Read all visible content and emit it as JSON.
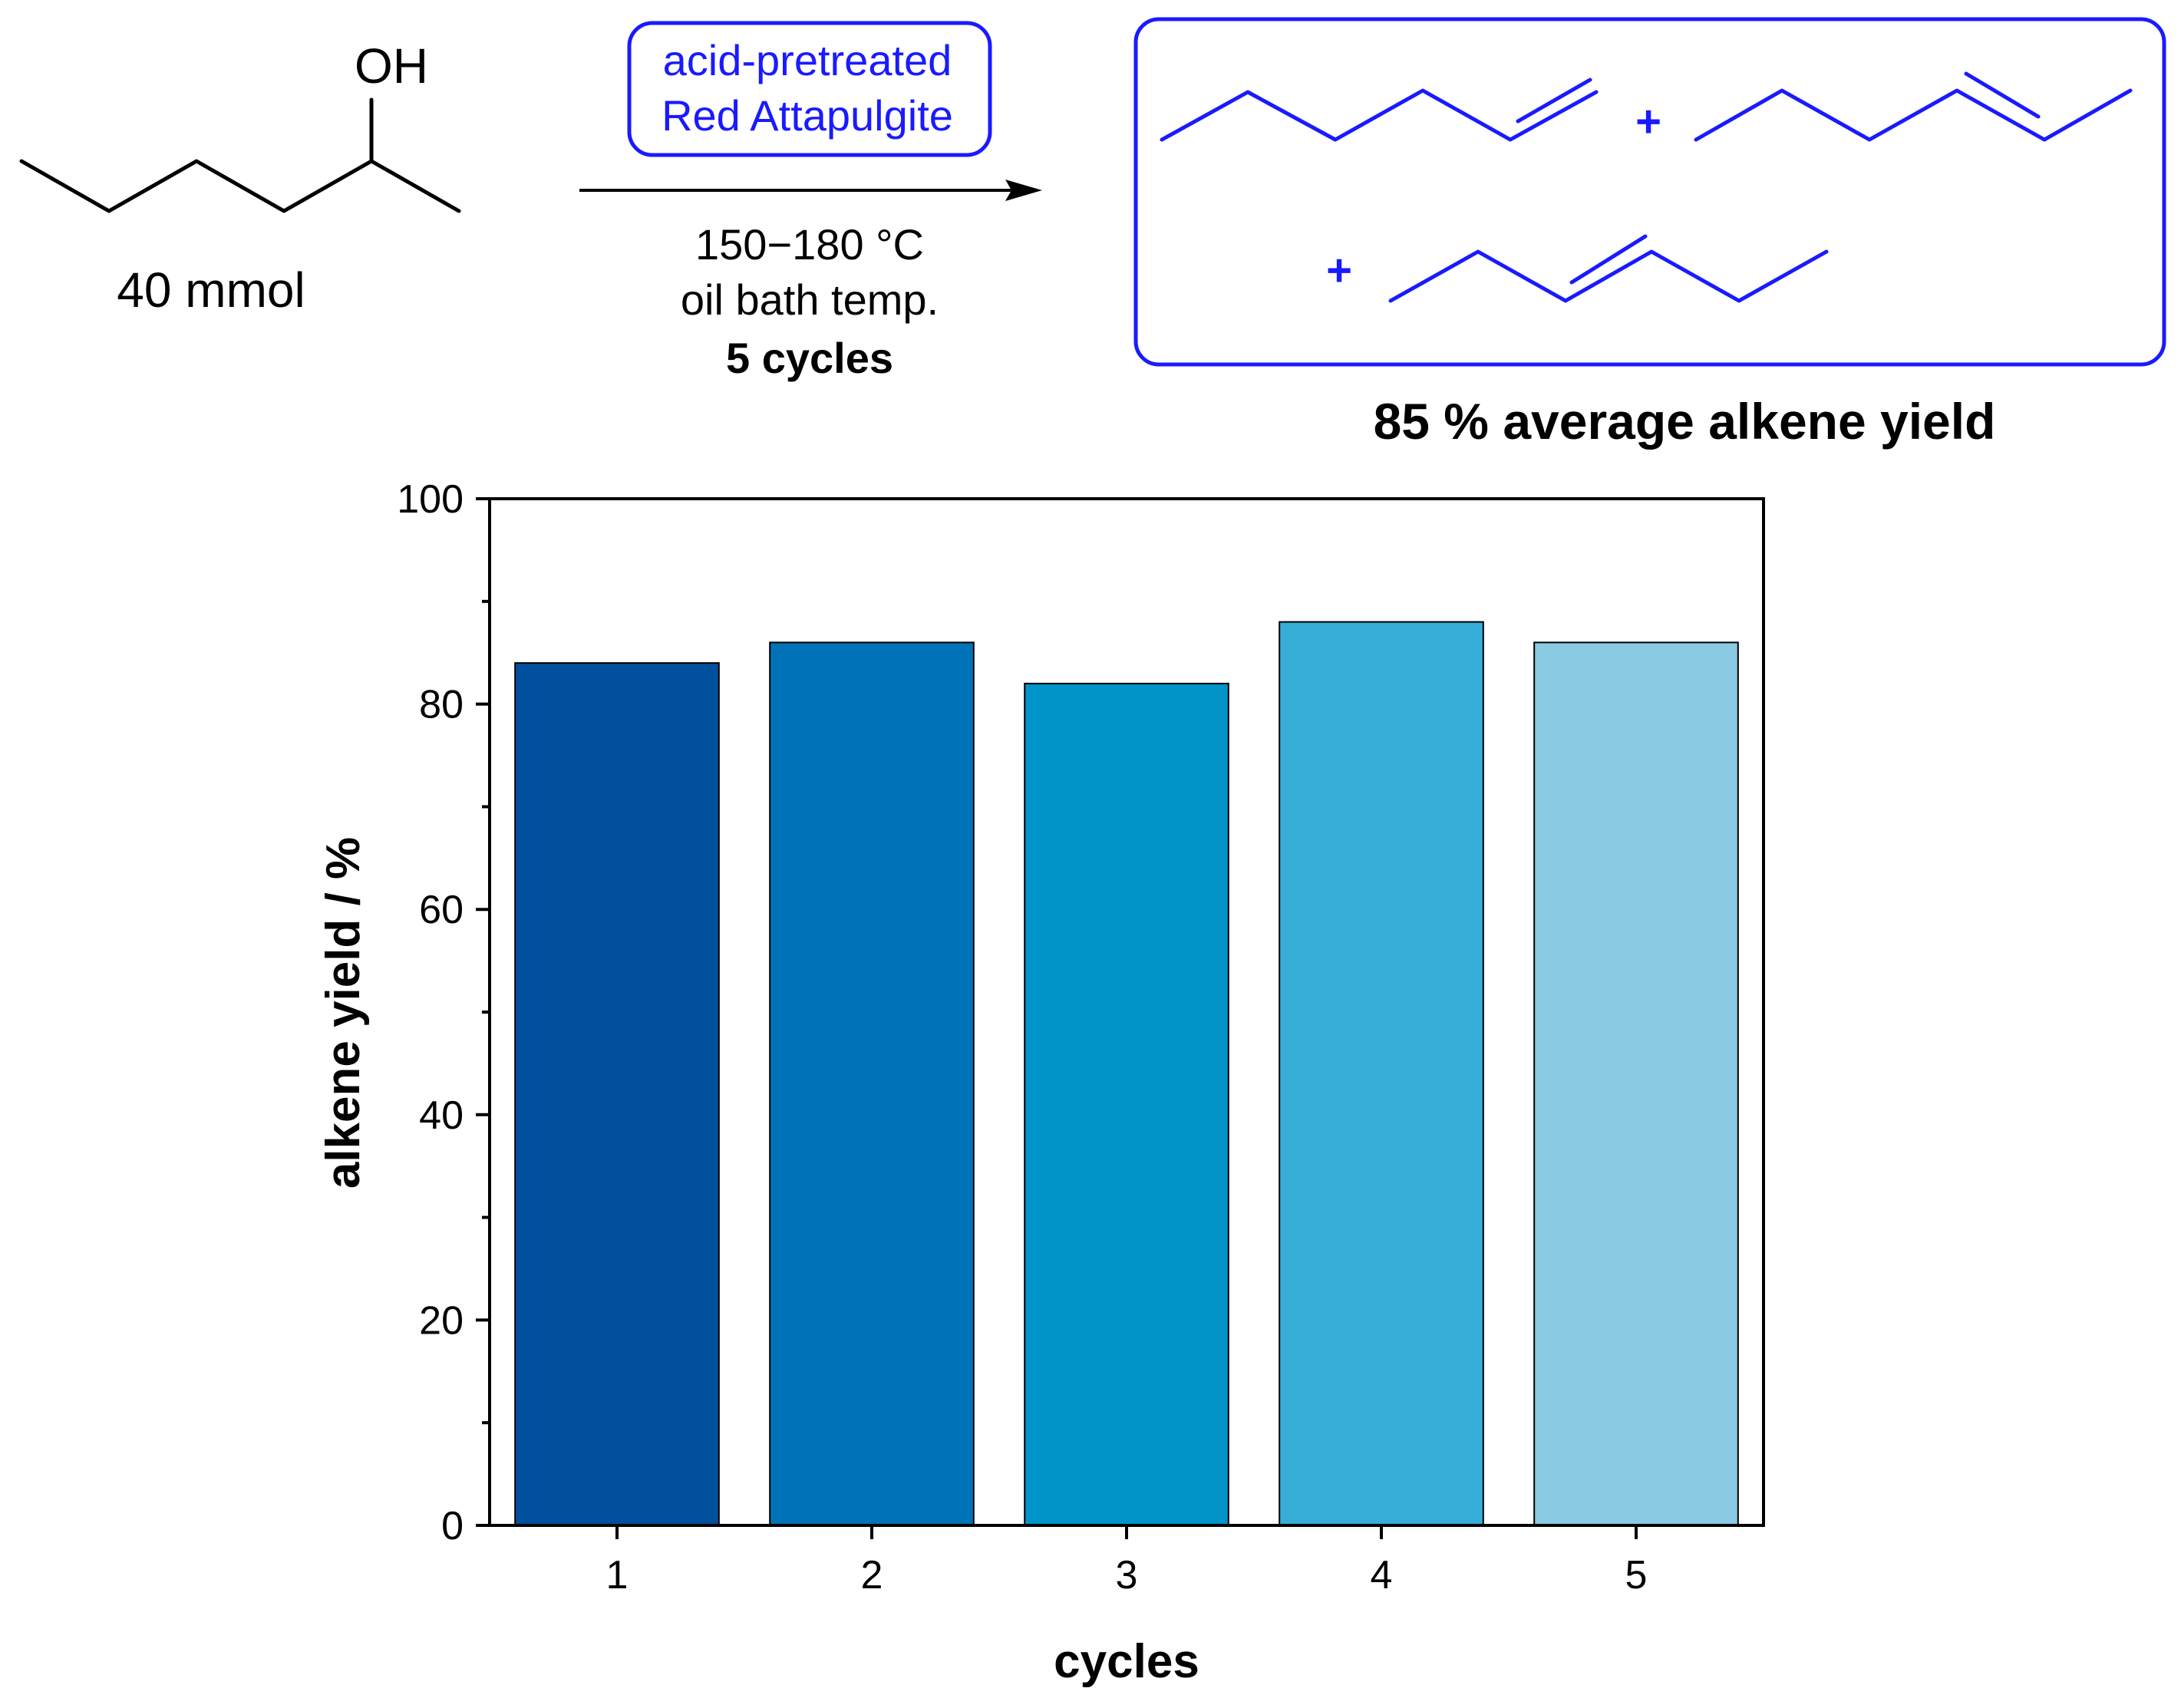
{
  "scheme": {
    "reactant": {
      "oh_label": "OH",
      "amount": "40 mmol"
    },
    "catalyst": {
      "line1": "acid-pretreated",
      "line2": "Red Attapulgite"
    },
    "conditions": {
      "temperature": "150−180 °C",
      "bath": "oil bath temp.",
      "cycles": "5 cycles"
    },
    "products": {
      "plus_1": "+",
      "plus_2": "+"
    },
    "summary": "85 % average alkene yield"
  },
  "colors": {
    "scheme_blue": "#1a1aff",
    "bar_colors": [
      "#00509e",
      "#0072b8",
      "#0094c9",
      "#36aed8",
      "#8acae2"
    ]
  },
  "chart_data": {
    "type": "bar",
    "title": "",
    "xlabel": "cycles",
    "ylabel": "alkene yield / %",
    "categories": [
      "1",
      "2",
      "3",
      "4",
      "5"
    ],
    "values": [
      84,
      86,
      82,
      88,
      86
    ],
    "ylim": [
      0,
      100
    ],
    "yticks": [
      0,
      20,
      40,
      60,
      80,
      100
    ],
    "ytick_labels": [
      "0",
      "20",
      "40",
      "60",
      "80",
      "100"
    ],
    "grid": false,
    "legend": "none"
  }
}
